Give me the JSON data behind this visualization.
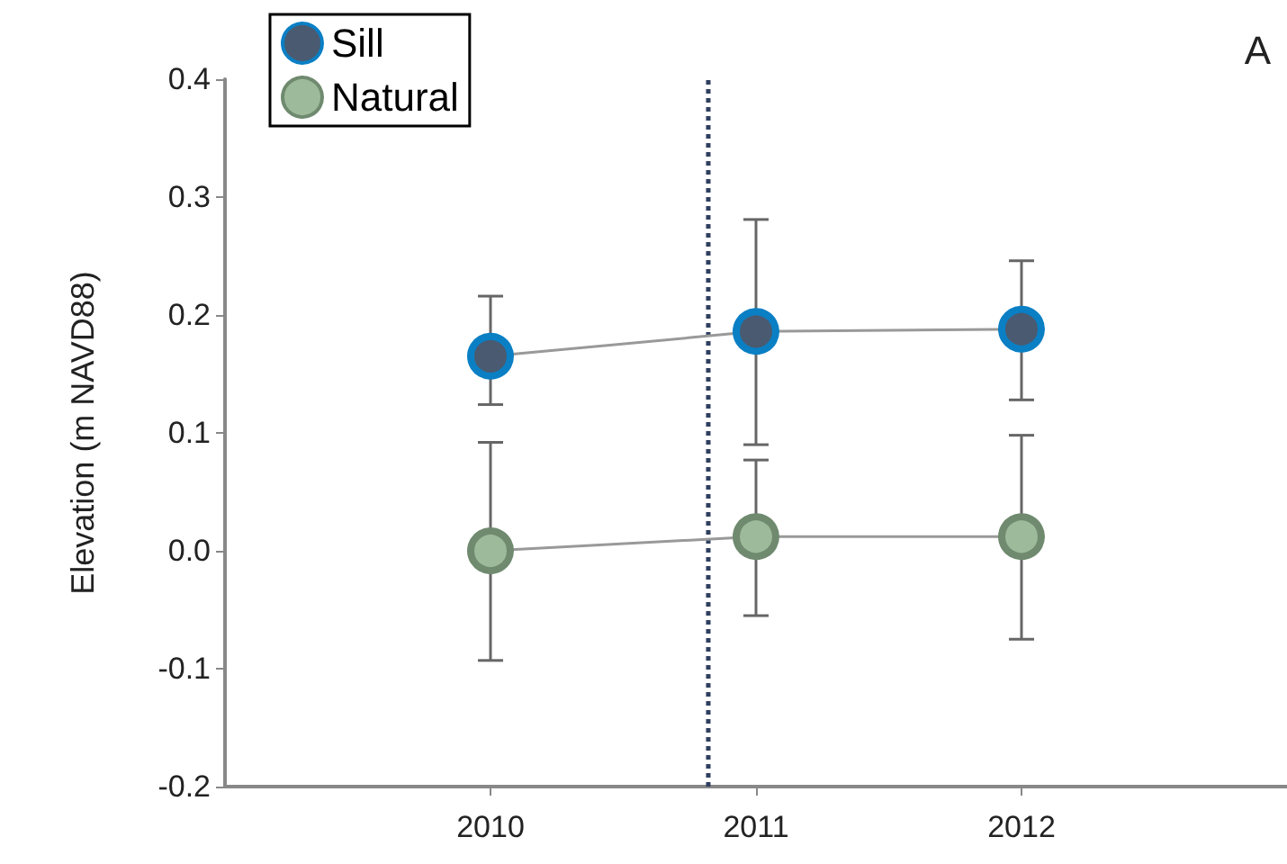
{
  "chart_data": {
    "type": "line",
    "ylabel": "Elevation (m NAVD88)",
    "annotations": [
      "A"
    ],
    "x": [
      2010,
      2011,
      2012
    ],
    "series": [
      {
        "name": "Sill",
        "color": "#0a7fc4",
        "values": [
          0.165,
          0.186,
          0.188
        ],
        "errors": [
          [
            0.124,
            0.216
          ],
          [
            0.09,
            0.281
          ],
          [
            0.128,
            0.246
          ]
        ]
      },
      {
        "name": "Natural",
        "color": "#6f8a6f",
        "values": [
          0.0,
          0.012,
          0.012
        ],
        "errors": [
          [
            -0.093,
            0.092
          ],
          [
            -0.055,
            0.077
          ],
          [
            -0.075,
            0.098
          ]
        ]
      }
    ],
    "xlim": [
      2009,
      2013
    ],
    "xticks": [
      2010,
      2011,
      2012
    ],
    "ylim": [
      -0.2,
      0.4
    ],
    "yticks": [
      {
        "value": -0.2,
        "label": "-0.2"
      },
      {
        "value": -0.1,
        "label": "-0.1"
      },
      {
        "value": 0,
        "label": "0.0"
      },
      0.1,
      0.2,
      0.3,
      0.4
    ],
    "ref_lines": [
      {
        "axis": "x",
        "value": 2010.82,
        "color": "#2f3f5f",
        "line_style": "dotted"
      }
    ],
    "grid": false,
    "legend": "top left",
    "marker": "circle",
    "line_style": "solid"
  }
}
